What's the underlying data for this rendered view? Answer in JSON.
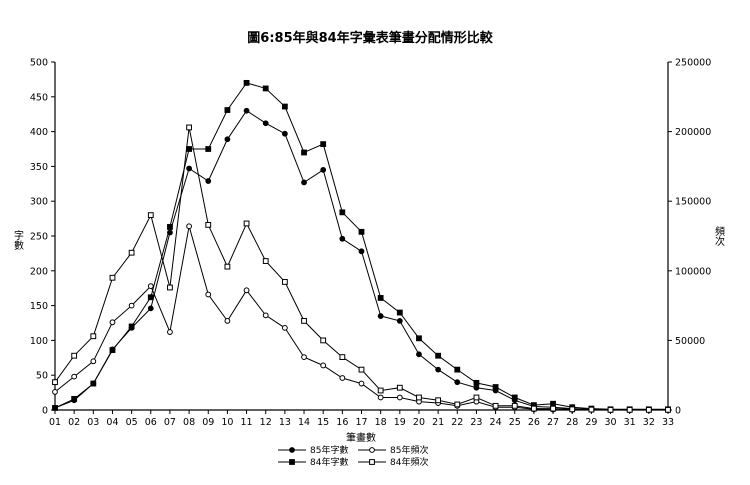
{
  "chart_data": {
    "type": "line",
    "title": "圖6:85年與84年字彙表筆畫分配情形比較",
    "xlabel": "筆畫數",
    "ylabel_left": "字數",
    "ylabel_right": "頻次",
    "x": [
      "01",
      "02",
      "03",
      "04",
      "05",
      "06",
      "07",
      "08",
      "09",
      "10",
      "11",
      "12",
      "13",
      "14",
      "15",
      "16",
      "17",
      "18",
      "19",
      "20",
      "21",
      "22",
      "23",
      "24",
      "25",
      "26",
      "27",
      "28",
      "29",
      "30",
      "31",
      "32",
      "33"
    ],
    "ylim_left": [
      0,
      500
    ],
    "yticks_left": [
      0,
      50,
      100,
      150,
      200,
      250,
      300,
      350,
      400,
      450,
      500
    ],
    "ylim_right": [
      0,
      250000
    ],
    "yticks_right": [
      0,
      50000,
      100000,
      150000,
      200000,
      250000
    ],
    "grid": false,
    "legend_position": "bottom",
    "series": [
      {
        "name": "85年字數",
        "axis": "left",
        "marker": "filled-circle",
        "values": [
          3,
          14,
          38,
          87,
          118,
          146,
          255,
          347,
          329,
          389,
          430,
          412,
          397,
          327,
          345,
          246,
          228,
          135,
          128,
          80,
          58,
          40,
          32,
          28,
          14,
          5,
          4,
          2,
          1,
          0,
          0,
          0,
          0
        ]
      },
      {
        "name": "84年字數",
        "axis": "left",
        "marker": "filled-square",
        "values": [
          3,
          16,
          38,
          86,
          120,
          162,
          263,
          375,
          375,
          431,
          470,
          462,
          436,
          370,
          382,
          284,
          256,
          161,
          140,
          103,
          78,
          58,
          39,
          33,
          18,
          7,
          9,
          4,
          2,
          1,
          1,
          1,
          1
        ]
      },
      {
        "name": "85年頻次",
        "axis": "right",
        "marker": "open-circle",
        "values": [
          13000,
          24000,
          35000,
          63000,
          75000,
          89000,
          56000,
          132000,
          83000,
          64000,
          86000,
          68000,
          59000,
          38000,
          32000,
          23000,
          19000,
          9000,
          9000,
          6000,
          5000,
          3000,
          6000,
          2000,
          2000,
          500,
          300,
          100,
          100,
          50,
          50,
          50,
          50
        ]
      },
      {
        "name": "84年頻次",
        "axis": "right",
        "marker": "open-square",
        "values": [
          20000,
          39000,
          53000,
          95000,
          113000,
          140000,
          88000,
          203000,
          133000,
          103000,
          134000,
          107000,
          92000,
          64000,
          50000,
          38000,
          29000,
          14000,
          16000,
          9000,
          7000,
          4000,
          9000,
          3000,
          3000,
          1000,
          1000,
          500,
          300,
          100,
          100,
          100,
          100
        ]
      }
    ]
  }
}
